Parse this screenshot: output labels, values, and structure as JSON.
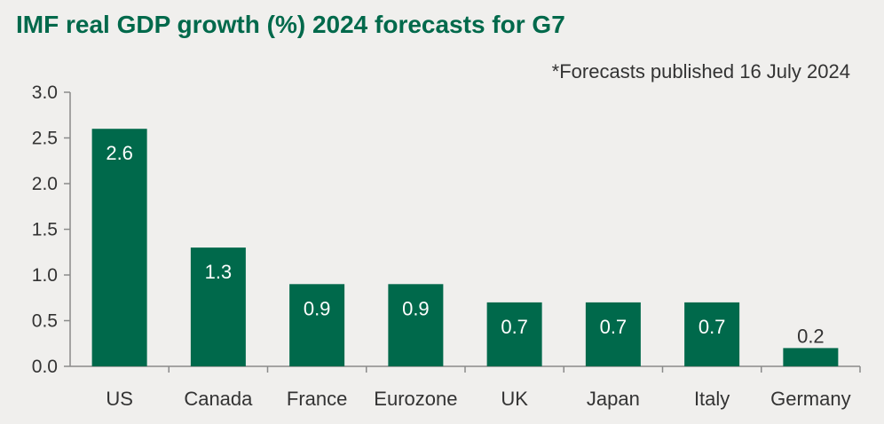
{
  "title": "IMF real GDP growth (%) 2024 forecasts for G7",
  "subtitle": "*Forecasts  published 16 July 2024",
  "colors": {
    "bar": "#00694b",
    "title": "#00694b",
    "axis": "#8a8a8a"
  },
  "chart_data": {
    "type": "bar",
    "title": "IMF real GDP growth (%) 2024 forecasts for G7",
    "categories": [
      "US",
      "Canada",
      "France",
      "Eurozone",
      "UK",
      "Japan",
      "Italy",
      "Germany"
    ],
    "values": [
      2.6,
      1.3,
      0.9,
      0.9,
      0.7,
      0.7,
      0.7,
      0.2
    ],
    "value_labels": [
      "2.6",
      "1.3",
      "0.9",
      "0.9",
      "0.7",
      "0.7",
      "0.7",
      "0.2"
    ],
    "y_ticks": [
      "0.0",
      "0.5",
      "1.0",
      "1.5",
      "2.0",
      "2.5",
      "3.0"
    ],
    "xlabel": "",
    "ylabel": "",
    "ylim": [
      0,
      3
    ],
    "grid": false,
    "legend": "none"
  }
}
